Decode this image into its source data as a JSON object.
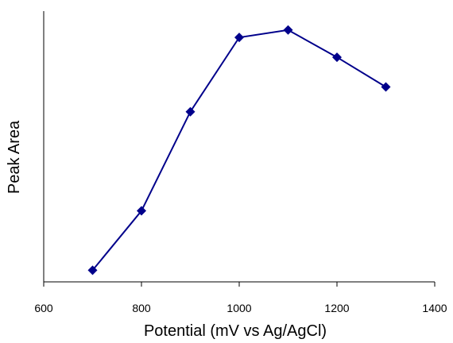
{
  "chart_data": {
    "type": "line",
    "title": "",
    "xlabel": "Potential (mV vs Ag/AgCl)",
    "ylabel": "Peak Area",
    "xlim": [
      600,
      1400
    ],
    "x_ticks": [
      600,
      800,
      1000,
      1200,
      1400
    ],
    "y_ticks_shown": false,
    "grid": false,
    "legend": "none",
    "series": [
      {
        "x": [
          700,
          800,
          900,
          1000,
          1100,
          1200,
          1300
        ],
        "y": [
          0.05,
          0.29,
          0.69,
          0.99,
          1.02,
          0.91,
          0.79
        ],
        "color": "#00008B",
        "marker": "diamond"
      }
    ]
  }
}
